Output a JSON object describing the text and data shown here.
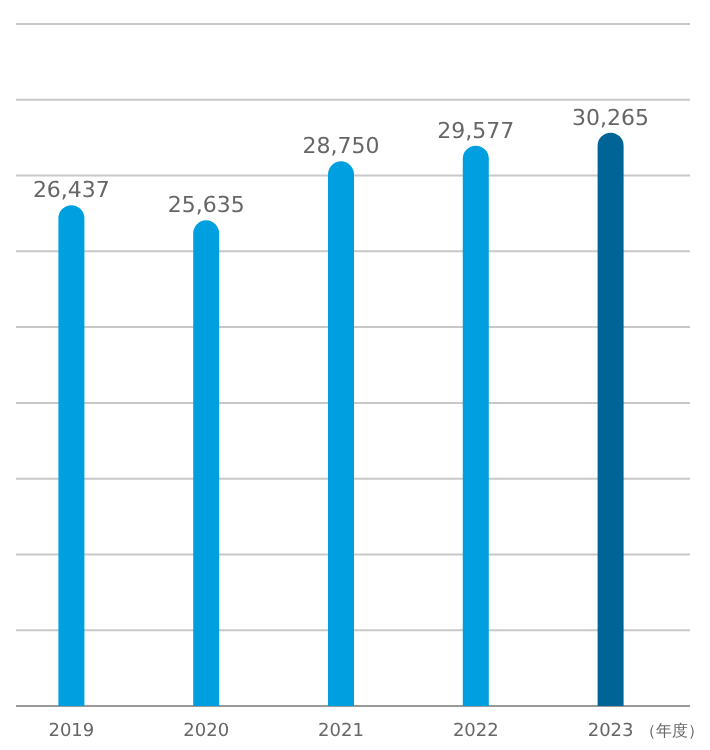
{
  "chart_data": {
    "type": "bar",
    "xlabel": "（年度）",
    "categories": [
      "2019",
      "2020",
      "2021",
      "2022",
      "2023"
    ],
    "values": [
      26437,
      25635,
      28750,
      29577,
      30265
    ],
    "value_labels": [
      "26,437",
      "25,635",
      "28,750",
      "29,577",
      "30,265"
    ],
    "colors": [
      "#009fe0",
      "#009fe0",
      "#009fe0",
      "#009fe0",
      "#006496"
    ],
    "ylim": [
      0,
      36000
    ],
    "yticks": [
      {
        "value": 0,
        "label": null
      },
      {
        "value": 4000,
        "label": null
      },
      {
        "value": 8000,
        "label": null
      },
      {
        "value": 12000,
        "label": null
      },
      {
        "value": 16000,
        "label": null
      },
      {
        "value": 20000,
        "label": null
      },
      {
        "value": 24000,
        "label": null
      },
      {
        "value": 28000,
        "label": null
      },
      {
        "value": 32000,
        "label": null
      },
      {
        "value": 36000,
        "label": null
      }
    ],
    "grid": "y"
  }
}
